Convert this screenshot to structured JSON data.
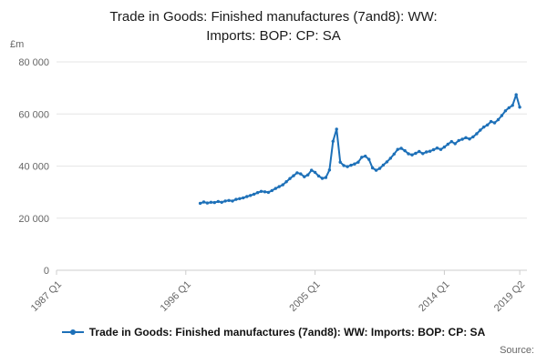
{
  "header": {
    "title_lines": [
      "Trade in Goods: Finished manufactures (7and8): WW:",
      "Imports: BOP: CP: SA"
    ]
  },
  "footer": {
    "source_label": "Source:"
  },
  "chart_data": {
    "type": "line",
    "title": "Trade in Goods: Finished manufactures (7and8): WW: Imports: BOP: CP: SA",
    "xlabel": "",
    "ylabel": "£m",
    "grid": true,
    "legend_position": "bottom",
    "x_axis": {
      "start": "1987 Q1",
      "end": "2019 Q4",
      "tick_labels": [
        "1987 Q1",
        "1996 Q1",
        "2005 Q1",
        "2014 Q1",
        "2019 Q2"
      ]
    },
    "y_axis": {
      "min": 0,
      "max": 80000,
      "ticks": [
        {
          "value": 0,
          "label": "0"
        },
        {
          "value": 20000,
          "label": "20 000"
        },
        {
          "value": 40000,
          "label": "40 000"
        },
        {
          "value": 60000,
          "label": "60 000"
        },
        {
          "value": 80000,
          "label": "80 000"
        }
      ]
    },
    "series": [
      {
        "name": "Trade in Goods: Finished manufactures (7and8): WW: Imports: BOP: CP: SA",
        "color": "#1d70b8",
        "frequency": "quarterly",
        "start": "1997 Q1",
        "end": "2019 Q2",
        "values": [
          25700,
          26200,
          25800,
          26100,
          26000,
          26400,
          26100,
          26600,
          26800,
          26600,
          27200,
          27500,
          27800,
          28300,
          28700,
          29200,
          29800,
          30300,
          30100,
          29900,
          30600,
          31400,
          32100,
          32800,
          34000,
          35200,
          36300,
          37400,
          37000,
          35900,
          36600,
          38400,
          37600,
          36200,
          35300,
          35600,
          38500,
          49500,
          54200,
          41500,
          40200,
          39800,
          40300,
          40800,
          41500,
          43400,
          43800,
          42600,
          39300,
          38400,
          39100,
          40400,
          41600,
          43000,
          44600,
          46400,
          46800,
          45900,
          44700,
          44300,
          44900,
          45600,
          44800,
          45400,
          45700,
          46300,
          46900,
          46400,
          47300,
          48400,
          49400,
          48600,
          49800,
          50300,
          50900,
          50400,
          51200,
          52400,
          53800,
          55000,
          55800,
          57100,
          56600,
          57800,
          59400,
          61200,
          62400,
          63300,
          67400,
          62600
        ]
      }
    ]
  }
}
